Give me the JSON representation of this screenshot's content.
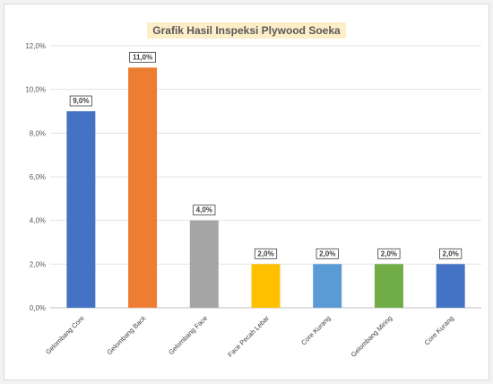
{
  "chart_data": {
    "type": "bar",
    "title": "Grafik Hasil Inspeksi Plywood Soeka",
    "categories": [
      "Gelombang Core",
      "Gelombang Back",
      "Gelombang Face",
      "Face Pecah Lebar",
      "Core Kurang",
      "Gelombang Miring",
      "Core Kurang"
    ],
    "values": [
      9.0,
      11.0,
      4.0,
      2.0,
      2.0,
      2.0,
      2.0
    ],
    "data_labels": [
      "9,0%",
      "11,0%",
      "4,0%",
      "2,0%",
      "2,0%",
      "2,0%",
      "2,0%"
    ],
    "colors": [
      "#4472c4",
      "#ed7d31",
      "#a5a5a5",
      "#ffc000",
      "#5b9bd5",
      "#70ad47",
      "#4472c4"
    ],
    "y_ticks": [
      "0,0%",
      "2,0%",
      "4,0%",
      "6,0%",
      "8,0%",
      "10,0%",
      "12,0%"
    ],
    "ylim": [
      0,
      12
    ],
    "grid": true,
    "legend": "none"
  }
}
